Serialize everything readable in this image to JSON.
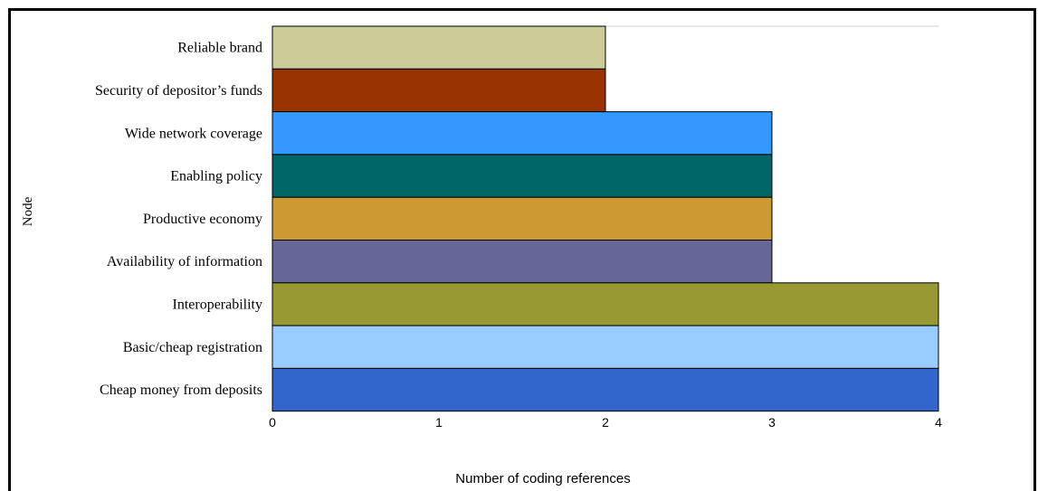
{
  "chart_data": {
    "type": "bar",
    "orientation": "horizontal",
    "title": "",
    "xlabel": "Number of coding references",
    "ylabel": "Node",
    "xlim": [
      0,
      4
    ],
    "x_ticks": [
      "0",
      "1",
      "2",
      "3",
      "4"
    ],
    "grid": false,
    "categories": [
      "Reliable brand",
      "Security of depositor’s funds",
      "Wide network coverage",
      "Enabling policy",
      "Productive economy",
      "Availability of information",
      "Interoperability",
      "Basic/cheap registration",
      "Cheap money from deposits"
    ],
    "values": [
      2,
      2,
      3,
      3,
      3,
      3,
      4,
      4,
      4
    ],
    "colors": [
      "#CCCC99",
      "#993300",
      "#3399FF",
      "#006666",
      "#CC9933",
      "#666699",
      "#999933",
      "#99CCFF",
      "#3366CC"
    ]
  }
}
